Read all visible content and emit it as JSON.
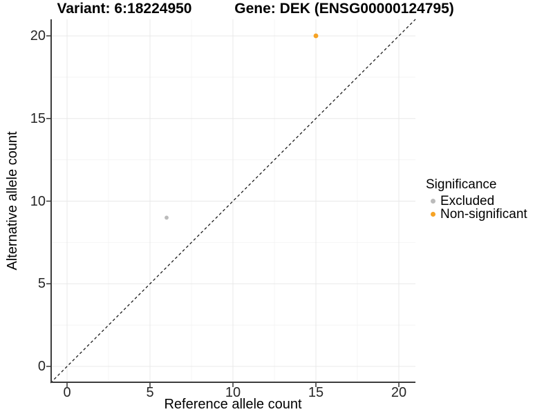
{
  "header": {
    "variant_title": "Variant: 6:18224950",
    "gene_title": "Gene: DEK (ENSG00000124795)"
  },
  "chart_data": {
    "type": "scatter",
    "title": "Variant: 6:18224950 / Gene: DEK (ENSG00000124795)",
    "xlabel": "Reference allele count",
    "ylabel": "Alternative allele count",
    "xlim": [
      -1,
      21
    ],
    "ylim": [
      -1,
      21
    ],
    "x_ticks": [
      0,
      5,
      10,
      15,
      20
    ],
    "y_ticks": [
      0,
      5,
      10,
      15,
      20
    ],
    "x_minor_ticks": [
      2.5,
      7.5,
      12.5,
      17.5
    ],
    "y_minor_ticks": [
      2.5,
      7.5,
      12.5,
      17.5
    ],
    "grid": "major and minor gridlines on white background",
    "identity_line": {
      "style": "dashed",
      "from": [
        -1,
        -1
      ],
      "to": [
        21,
        21
      ],
      "color": "#1a1a1a"
    },
    "series": [
      {
        "name": "Excluded",
        "color": "#bbbbbb",
        "point_radius": 2.9,
        "points": [
          {
            "x": 6,
            "y": 9
          }
        ]
      },
      {
        "name": "Non-significant",
        "color": "#f6a325",
        "point_radius": 3.4,
        "points": [
          {
            "x": 15,
            "y": 20
          }
        ]
      }
    ],
    "legend": {
      "title": "Significance",
      "position": "right"
    }
  },
  "colors": {
    "background": "#ffffff",
    "grid_major": "#e8e8e8",
    "grid_minor": "#f4f4f4",
    "axis_line": "#3c3c3c",
    "tick_mark": "#333333",
    "tick_text": "#262626",
    "excluded": "#bbbbbb",
    "non_significant": "#f6a325"
  }
}
